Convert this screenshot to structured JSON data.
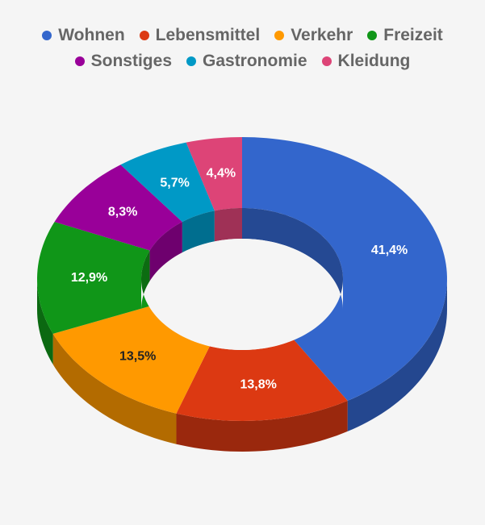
{
  "chart_data": {
    "type": "pie",
    "style": "3d-donut",
    "legend_position": "top",
    "slices": [
      {
        "label": "Wohnen",
        "value": 41.4,
        "display": "41,4%",
        "color": "#3366cc",
        "label_color": "#ffffff"
      },
      {
        "label": "Lebensmittel",
        "value": 13.8,
        "display": "13,8%",
        "color": "#dc3912",
        "label_color": "#ffffff"
      },
      {
        "label": "Verkehr",
        "value": 13.5,
        "display": "13,5%",
        "color": "#ff9900",
        "label_color": "#222222"
      },
      {
        "label": "Freizeit",
        "value": 12.9,
        "display": "12,9%",
        "color": "#109618",
        "label_color": "#ffffff"
      },
      {
        "label": "Sonstiges",
        "value": 8.3,
        "display": "8,3%",
        "color": "#990099",
        "label_color": "#ffffff"
      },
      {
        "label": "Gastronomie",
        "value": 5.7,
        "display": "5,7%",
        "color": "#0099c6",
        "label_color": "#ffffff"
      },
      {
        "label": "Kleidung",
        "value": 4.4,
        "display": "4,4%",
        "color": "#dd4477",
        "label_color": "#ffffff"
      }
    ]
  }
}
